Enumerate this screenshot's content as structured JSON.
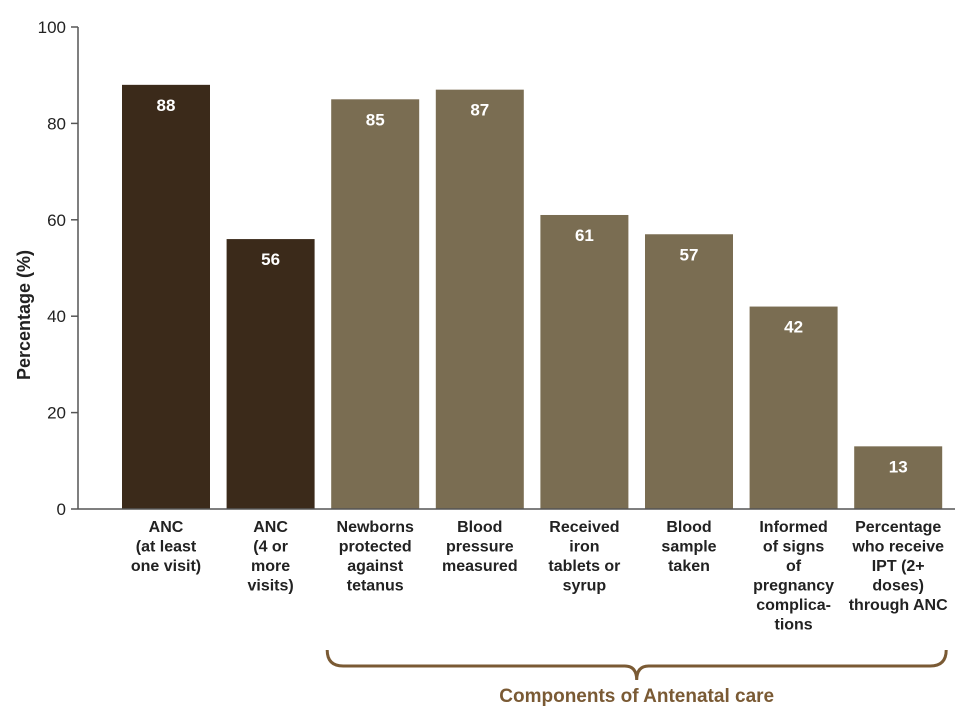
{
  "chart_data": {
    "type": "bar",
    "title": "",
    "xlabel": "",
    "ylabel": "Percentage (%)",
    "ylim": [
      0,
      100
    ],
    "yticks": [
      0,
      20,
      40,
      60,
      80,
      100
    ],
    "grid": false,
    "categories": [
      [
        "ANC",
        "(at least",
        "one visit)"
      ],
      [
        "ANC",
        "(4 or",
        "more",
        "visits)"
      ],
      [
        "Newborns",
        "protected",
        "against",
        "tetanus"
      ],
      [
        "Blood",
        "pressure",
        "measured"
      ],
      [
        "Received",
        "iron",
        "tablets or",
        "syrup"
      ],
      [
        "Blood",
        "sample",
        "taken"
      ],
      [
        "Informed",
        "of signs",
        "of",
        "pregnancy",
        "complica-",
        "tions"
      ],
      [
        "Percentage",
        "who receive",
        "IPT (2+",
        "doses)",
        "through ANC"
      ]
    ],
    "values": [
      88,
      56,
      85,
      87,
      61,
      57,
      42,
      13
    ],
    "bar_colors": [
      "#3b2a1a",
      "#3b2a1a",
      "#7a6d52",
      "#7a6d52",
      "#7a6d52",
      "#7a6d52",
      "#7a6d52",
      "#7a6d52"
    ],
    "group_annotation": "Components of Antenatal care",
    "group_annotation_color": "#7a5a34",
    "axis_color": "#555555"
  }
}
